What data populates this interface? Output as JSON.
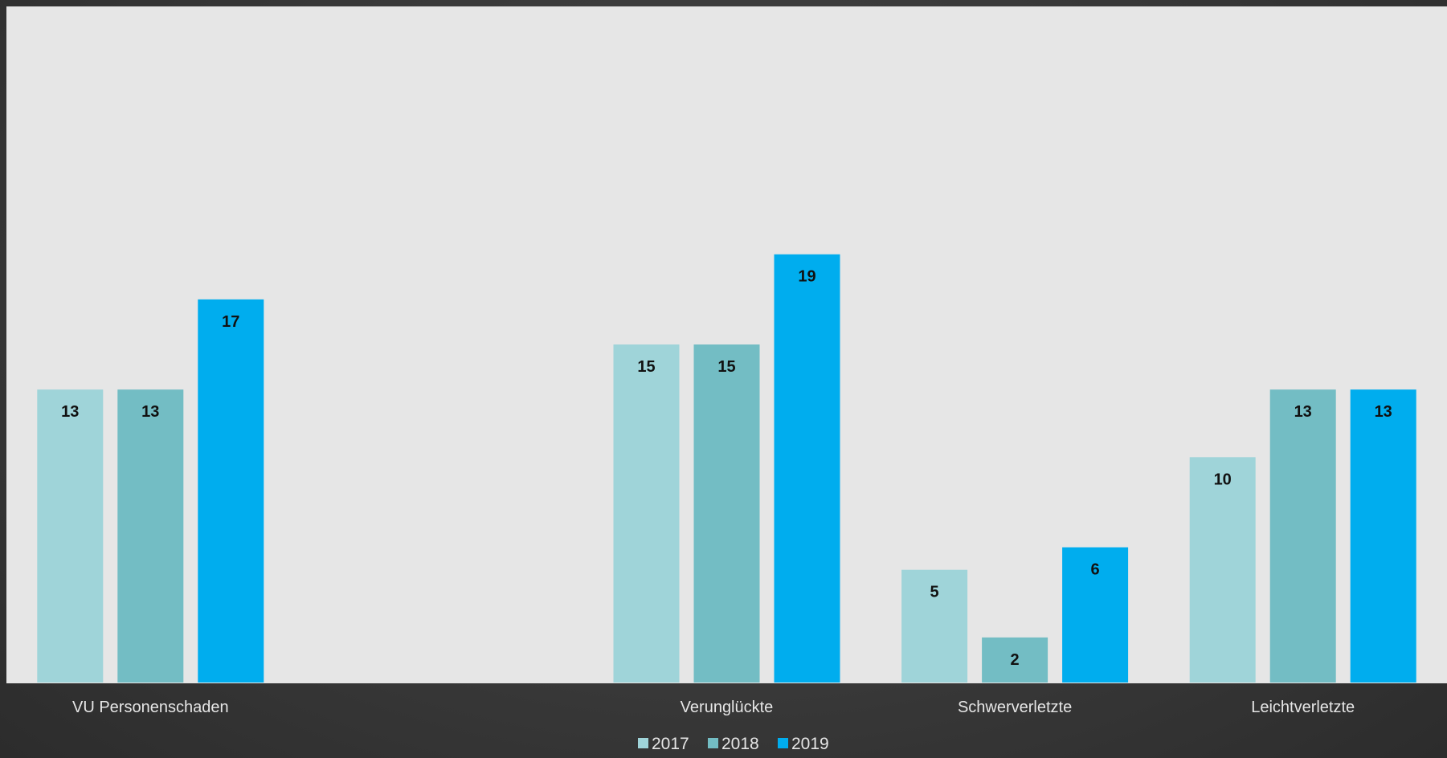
{
  "chart_data": {
    "type": "bar",
    "title": "",
    "xlabel": "",
    "ylabel": "",
    "categories": [
      "VU Personenschaden",
      "",
      "Verunglückte",
      "Schwerverletzte",
      "Leichtverletzte"
    ],
    "series": [
      {
        "name": "2017",
        "color": "#9fd4d9",
        "values": [
          13,
          null,
          15,
          5,
          10
        ]
      },
      {
        "name": "2018",
        "color": "#73bdc4",
        "values": [
          13,
          null,
          15,
          2,
          13
        ]
      },
      {
        "name": "2019",
        "color": "#00adee",
        "values": [
          17,
          null,
          19,
          6,
          13
        ]
      }
    ],
    "ylim": [
      0,
      30
    ],
    "grid": false,
    "legend_position": "bottom",
    "data_labels": true
  }
}
